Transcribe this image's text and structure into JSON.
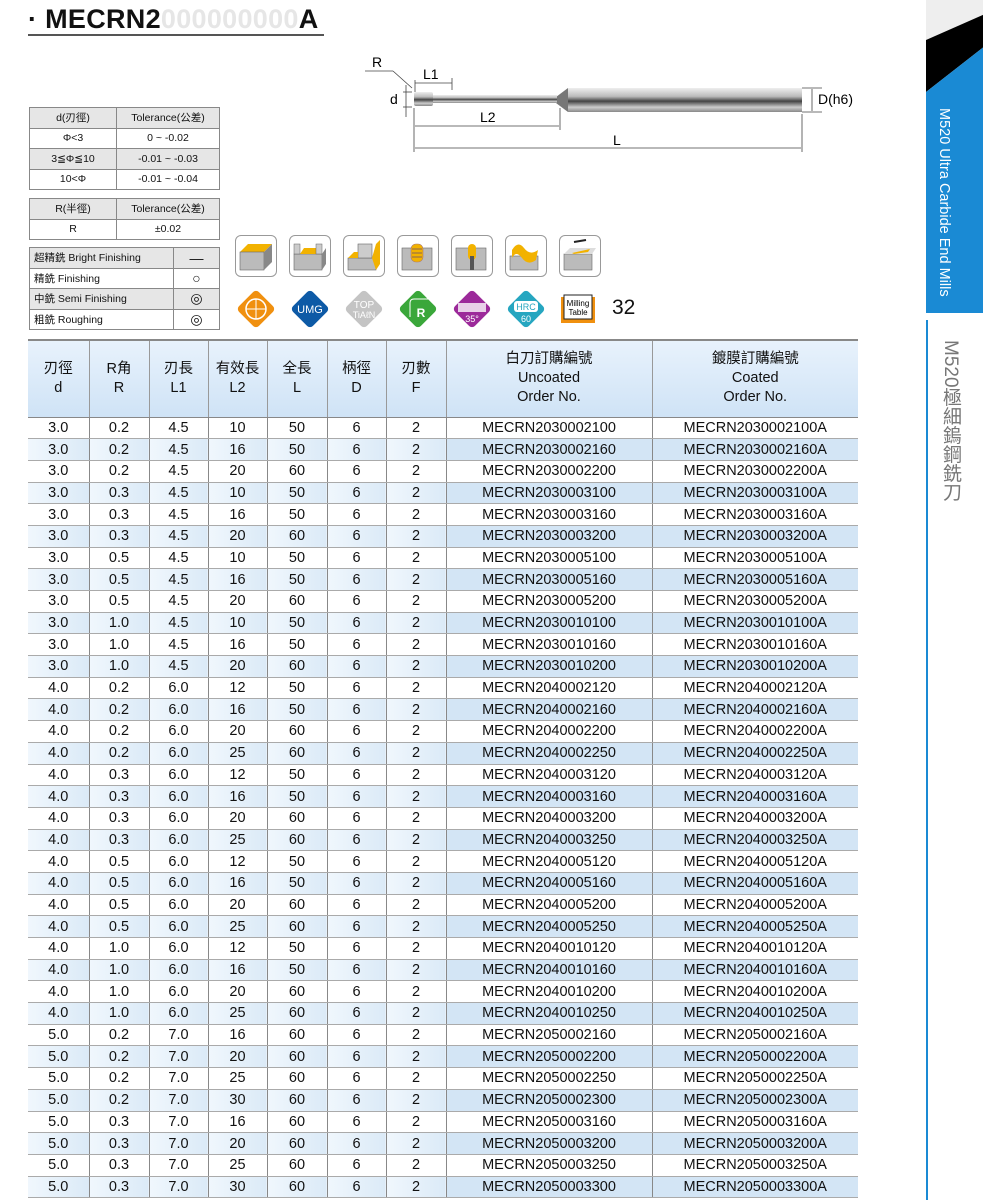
{
  "title": {
    "prefix": "· MECRN2",
    "ghost": "000000000",
    "suffix": "A"
  },
  "diagram": {
    "r": "R",
    "l1": "L1",
    "d": "d",
    "l2": "L2",
    "l": "L",
    "shank": "D(h6)"
  },
  "tol_d": {
    "headers": [
      "d(刃徑)",
      "Tolerance(公差)"
    ],
    "rows": [
      [
        "Φ<3",
        "0 ~ -0.02"
      ],
      [
        "3≦Φ≦10",
        "-0.01 ~ -0.03"
      ],
      [
        "10<Φ",
        "-0.01 ~ -0.04"
      ]
    ]
  },
  "tol_r": {
    "headers": [
      "R(半徑)",
      "Tolerance(公差)"
    ],
    "rows": [
      [
        "R",
        "±0.02"
      ]
    ]
  },
  "legend": [
    [
      "超精銑 Bright Finishing",
      "—"
    ],
    [
      "精銑 Finishing",
      "○"
    ],
    [
      "中銑 Semi Finishing",
      "◎"
    ],
    [
      "粗銑 Roughing",
      "◎"
    ]
  ],
  "badges": {
    "umg": "UMG",
    "top1": "TOP",
    "top2": "TiAℓN",
    "r": "R",
    "helix": "35°",
    "hrc1": "HRC",
    "hrc2": "60",
    "mt1": "Milling",
    "mt2": "Table",
    "page": "32"
  },
  "colors": {
    "accent": "#1a8ad4",
    "orange": "#f0900f",
    "umg": "#0d5aa6",
    "green": "#3aa73a",
    "purple": "#9c2a9a",
    "teal": "#26a6c0"
  },
  "sidebar": {
    "en": "M520 Ultra Carbide End Mills",
    "zh": "M520極細鎢鋼銑刀"
  },
  "table": {
    "headers": [
      [
        "刃徑",
        "d"
      ],
      [
        "R角",
        "R"
      ],
      [
        "刃長",
        "L1"
      ],
      [
        "有效長",
        "L2"
      ],
      [
        "全長",
        "L"
      ],
      [
        "柄徑",
        "D"
      ],
      [
        "刃數",
        "F"
      ],
      [
        "白刀訂購編號",
        "Uncoated",
        "Order No."
      ],
      [
        "鍍膜訂購編號",
        "Coated",
        "Order No."
      ]
    ],
    "rows": [
      [
        "3.0",
        "0.2",
        "4.5",
        "10",
        "50",
        "6",
        "2",
        "MECRN2030002100",
        "MECRN2030002100A"
      ],
      [
        "3.0",
        "0.2",
        "4.5",
        "16",
        "50",
        "6",
        "2",
        "MECRN2030002160",
        "MECRN2030002160A"
      ],
      [
        "3.0",
        "0.2",
        "4.5",
        "20",
        "60",
        "6",
        "2",
        "MECRN2030002200",
        "MECRN2030002200A"
      ],
      [
        "3.0",
        "0.3",
        "4.5",
        "10",
        "50",
        "6",
        "2",
        "MECRN2030003100",
        "MECRN2030003100A"
      ],
      [
        "3.0",
        "0.3",
        "4.5",
        "16",
        "50",
        "6",
        "2",
        "MECRN2030003160",
        "MECRN2030003160A"
      ],
      [
        "3.0",
        "0.3",
        "4.5",
        "20",
        "60",
        "6",
        "2",
        "MECRN2030003200",
        "MECRN2030003200A"
      ],
      [
        "3.0",
        "0.5",
        "4.5",
        "10",
        "50",
        "6",
        "2",
        "MECRN2030005100",
        "MECRN2030005100A"
      ],
      [
        "3.0",
        "0.5",
        "4.5",
        "16",
        "50",
        "6",
        "2",
        "MECRN2030005160",
        "MECRN2030005160A"
      ],
      [
        "3.0",
        "0.5",
        "4.5",
        "20",
        "60",
        "6",
        "2",
        "MECRN2030005200",
        "MECRN2030005200A"
      ],
      [
        "3.0",
        "1.0",
        "4.5",
        "10",
        "50",
        "6",
        "2",
        "MECRN2030010100",
        "MECRN2030010100A"
      ],
      [
        "3.0",
        "1.0",
        "4.5",
        "16",
        "50",
        "6",
        "2",
        "MECRN2030010160",
        "MECRN2030010160A"
      ],
      [
        "3.0",
        "1.0",
        "4.5",
        "20",
        "60",
        "6",
        "2",
        "MECRN2030010200",
        "MECRN2030010200A"
      ],
      [
        "4.0",
        "0.2",
        "6.0",
        "12",
        "50",
        "6",
        "2",
        "MECRN2040002120",
        "MECRN2040002120A"
      ],
      [
        "4.0",
        "0.2",
        "6.0",
        "16",
        "50",
        "6",
        "2",
        "MECRN2040002160",
        "MECRN2040002160A"
      ],
      [
        "4.0",
        "0.2",
        "6.0",
        "20",
        "60",
        "6",
        "2",
        "MECRN2040002200",
        "MECRN2040002200A"
      ],
      [
        "4.0",
        "0.2",
        "6.0",
        "25",
        "60",
        "6",
        "2",
        "MECRN2040002250",
        "MECRN2040002250A"
      ],
      [
        "4.0",
        "0.3",
        "6.0",
        "12",
        "50",
        "6",
        "2",
        "MECRN2040003120",
        "MECRN2040003120A"
      ],
      [
        "4.0",
        "0.3",
        "6.0",
        "16",
        "50",
        "6",
        "2",
        "MECRN2040003160",
        "MECRN2040003160A"
      ],
      [
        "4.0",
        "0.3",
        "6.0",
        "20",
        "60",
        "6",
        "2",
        "MECRN2040003200",
        "MECRN2040003200A"
      ],
      [
        "4.0",
        "0.3",
        "6.0",
        "25",
        "60",
        "6",
        "2",
        "MECRN2040003250",
        "MECRN2040003250A"
      ],
      [
        "4.0",
        "0.5",
        "6.0",
        "12",
        "50",
        "6",
        "2",
        "MECRN2040005120",
        "MECRN2040005120A"
      ],
      [
        "4.0",
        "0.5",
        "6.0",
        "16",
        "50",
        "6",
        "2",
        "MECRN2040005160",
        "MECRN2040005160A"
      ],
      [
        "4.0",
        "0.5",
        "6.0",
        "20",
        "60",
        "6",
        "2",
        "MECRN2040005200",
        "MECRN2040005200A"
      ],
      [
        "4.0",
        "0.5",
        "6.0",
        "25",
        "60",
        "6",
        "2",
        "MECRN2040005250",
        "MECRN2040005250A"
      ],
      [
        "4.0",
        "1.0",
        "6.0",
        "12",
        "50",
        "6",
        "2",
        "MECRN2040010120",
        "MECRN2040010120A"
      ],
      [
        "4.0",
        "1.0",
        "6.0",
        "16",
        "50",
        "6",
        "2",
        "MECRN2040010160",
        "MECRN2040010160A"
      ],
      [
        "4.0",
        "1.0",
        "6.0",
        "20",
        "60",
        "6",
        "2",
        "MECRN2040010200",
        "MECRN2040010200A"
      ],
      [
        "4.0",
        "1.0",
        "6.0",
        "25",
        "60",
        "6",
        "2",
        "MECRN2040010250",
        "MECRN2040010250A"
      ],
      [
        "5.0",
        "0.2",
        "7.0",
        "16",
        "60",
        "6",
        "2",
        "MECRN2050002160",
        "MECRN2050002160A"
      ],
      [
        "5.0",
        "0.2",
        "7.0",
        "20",
        "60",
        "6",
        "2",
        "MECRN2050002200",
        "MECRN2050002200A"
      ],
      [
        "5.0",
        "0.2",
        "7.0",
        "25",
        "60",
        "6",
        "2",
        "MECRN2050002250",
        "MECRN2050002250A"
      ],
      [
        "5.0",
        "0.2",
        "7.0",
        "30",
        "60",
        "6",
        "2",
        "MECRN2050002300",
        "MECRN2050002300A"
      ],
      [
        "5.0",
        "0.3",
        "7.0",
        "16",
        "60",
        "6",
        "2",
        "MECRN2050003160",
        "MECRN2050003160A"
      ],
      [
        "5.0",
        "0.3",
        "7.0",
        "20",
        "60",
        "6",
        "2",
        "MECRN2050003200",
        "MECRN2050003200A"
      ],
      [
        "5.0",
        "0.3",
        "7.0",
        "25",
        "60",
        "6",
        "2",
        "MECRN2050003250",
        "MECRN2050003250A"
      ],
      [
        "5.0",
        "0.3",
        "7.0",
        "30",
        "60",
        "6",
        "2",
        "MECRN2050003300",
        "MECRN2050003300A"
      ]
    ]
  }
}
